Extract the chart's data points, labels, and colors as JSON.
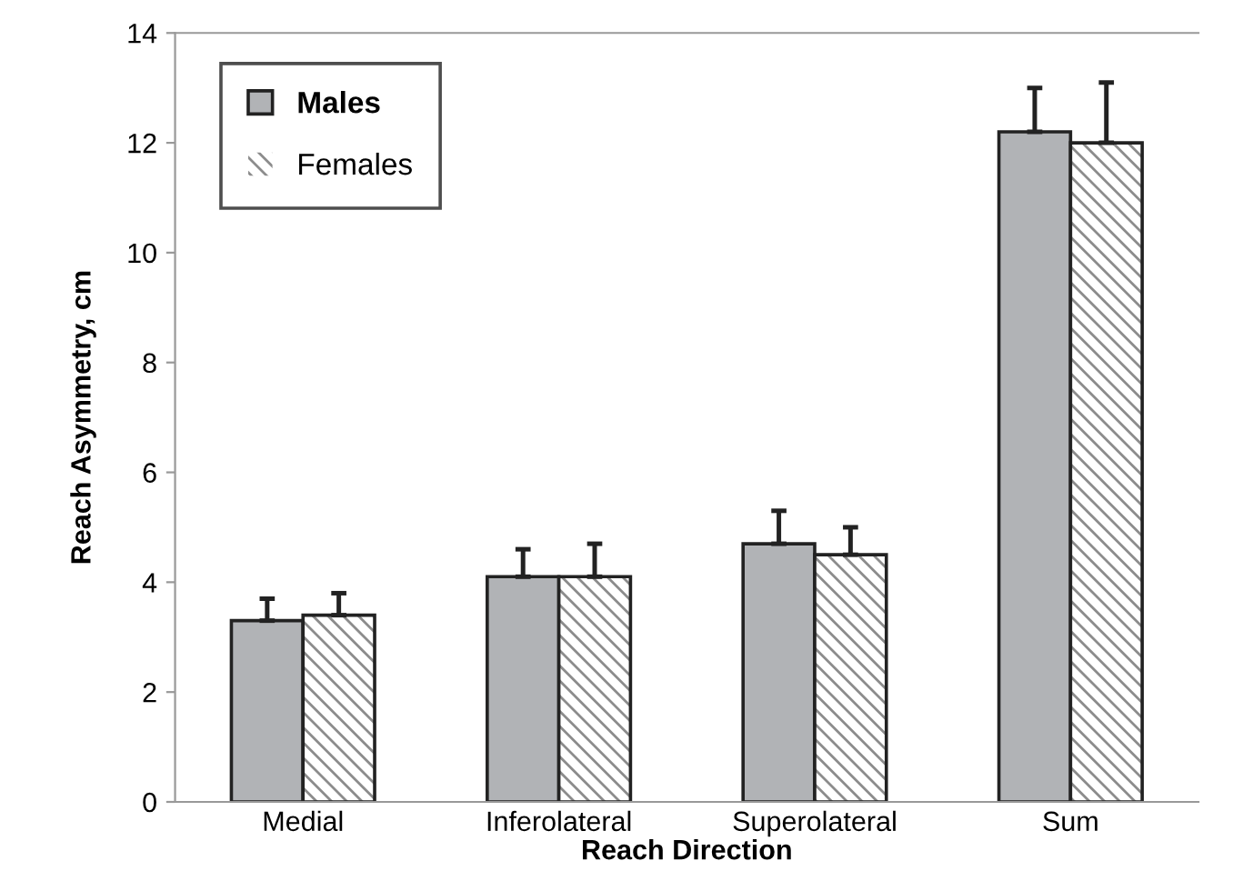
{
  "chart_data": {
    "type": "bar",
    "xlabel": "Reach Direction",
    "ylabel": "Reach Asymmetry, cm",
    "categories": [
      "Medial",
      "Inferolateral",
      "Superolateral",
      "Sum"
    ],
    "series": [
      {
        "name": "Males",
        "color": "#b1b3b6",
        "values": [
          3.3,
          4.1,
          4.7,
          12.2
        ],
        "errors": [
          [
            3.3,
            3.7
          ],
          [
            4.1,
            4.6
          ],
          [
            4.7,
            5.3
          ],
          [
            12.2,
            13.0
          ]
        ]
      },
      {
        "name": "Females",
        "color": "#8c8c8c",
        "values": [
          3.4,
          4.1,
          4.5,
          12.0
        ],
        "errors": [
          [
            3.4,
            3.8
          ],
          [
            4.1,
            4.7
          ],
          [
            4.5,
            5.0
          ],
          [
            12.0,
            13.1
          ]
        ]
      }
    ],
    "ylim": [
      0,
      14
    ],
    "yticks": [
      0,
      2,
      4,
      6,
      8,
      10,
      12,
      14
    ],
    "grid": false,
    "legend": "top left"
  }
}
